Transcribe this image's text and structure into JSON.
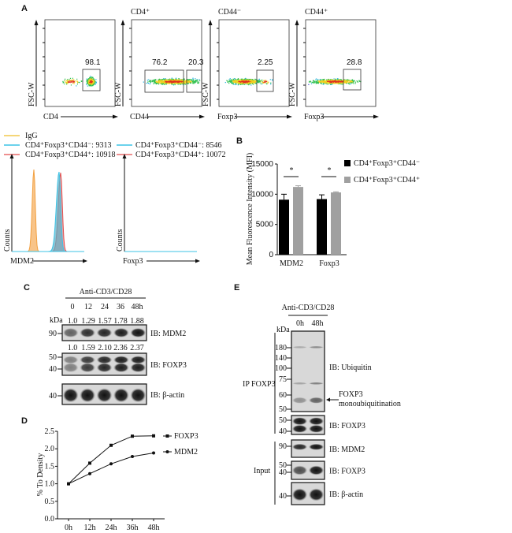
{
  "panel_labels": {
    "a": "A",
    "b": "B",
    "c": "C",
    "d": "D",
    "e": "E"
  },
  "panel_a": {
    "plots": [
      {
        "title": "",
        "xlabel": "CD4",
        "ylabel": "FSC-W",
        "gates": [
          "98.1"
        ]
      },
      {
        "title": "CD4⁺",
        "xlabel": "CD44",
        "ylabel": "FSC-W",
        "gates": [
          "76.2",
          "20.3"
        ]
      },
      {
        "title": "CD44⁻",
        "xlabel": "Foxp3",
        "ylabel": "FSC-W",
        "gates": [
          "2.25"
        ]
      },
      {
        "title": "CD44⁺",
        "xlabel": "Foxp3",
        "ylabel": "FSC-W",
        "gates": [
          "28.8"
        ]
      }
    ],
    "histograms": {
      "legend_left": [
        {
          "label": "IgG",
          "color": "#f2c94c"
        },
        {
          "label": "CD4⁺Foxp3⁺CD44⁻:  9313",
          "color": "#3cc3e6"
        },
        {
          "label": "CD4⁺Foxp3⁺CD44⁺: 10918",
          "color": "#e86a6a"
        }
      ],
      "legend_right": [
        {
          "label": "CD4⁺Foxp3⁺CD44⁻:  8546",
          "color": "#3cc3e6"
        },
        {
          "label": "CD4⁺Foxp3⁺CD44⁺: 10072",
          "color": "#e86a6a"
        }
      ],
      "left": {
        "xlabel": "MDM2",
        "ylabel": "Counts"
      },
      "right": {
        "xlabel": "Foxp3",
        "ylabel": "Counts"
      }
    }
  },
  "chart_data": [
    {
      "panel": "B",
      "type": "bar",
      "categories": [
        "MDM2",
        "Foxp3"
      ],
      "ylabel": "Mean Fluorescence Intensity (MFI)",
      "ylim": [
        0,
        15000
      ],
      "yticks": [
        "0",
        "5000",
        "10000",
        "15000"
      ],
      "series": [
        {
          "name": "CD4⁺Foxp3⁺CD44⁻",
          "color": "#000000",
          "values": [
            9100,
            9200
          ],
          "errors": [
            900,
            700
          ]
        },
        {
          "name": "CD4⁺Foxp3⁺CD44⁺",
          "color": "#a0a0a0",
          "values": [
            11200,
            10300
          ],
          "errors": [
            200,
            100
          ]
        }
      ],
      "significance": [
        "*",
        "*"
      ],
      "legend_position": "right"
    },
    {
      "panel": "D",
      "type": "line",
      "x": [
        "0h",
        "12h",
        "24h",
        "36h",
        "48h"
      ],
      "ylabel": "% To Density",
      "ylim": [
        0,
        2.5
      ],
      "yticks": [
        "0.0",
        "0.5",
        "1.0",
        "1.5",
        "2.0",
        "2.5"
      ],
      "series": [
        {
          "name": "FOXP3",
          "marker": "square",
          "values": [
            1.0,
            1.59,
            2.1,
            2.36,
            2.37
          ]
        },
        {
          "name": "MDM2",
          "marker": "circle",
          "values": [
            1.0,
            1.29,
            1.57,
            1.78,
            1.88
          ]
        }
      ],
      "legend_position": "right"
    }
  ],
  "panel_c": {
    "treatment": "Anti-CD3/CD28",
    "lanes": [
      "0",
      "12",
      "24",
      "36",
      "48h"
    ],
    "kda": "kDa",
    "mdm2_ratios": [
      "1.0",
      "1.29",
      "1.57",
      "1.78",
      "1.88"
    ],
    "foxp3_ratios": [
      "1.0",
      "1.59",
      "2.10",
      "2.36",
      "2.37"
    ],
    "blots": [
      {
        "label": "IB: MDM2",
        "markers": [
          "90"
        ]
      },
      {
        "label": "IB: FOXP3",
        "markers": [
          "50",
          "40"
        ]
      },
      {
        "label": "IB: β-actin",
        "markers": [
          "40"
        ]
      }
    ]
  },
  "panel_e": {
    "treatment": "Anti-CD3/CD28",
    "lanes": [
      "0h",
      "48h"
    ],
    "kda": "kDa",
    "ip_label": "IP FOXP3",
    "input_label": "Input",
    "arrow_label_1": "FOXP3",
    "arrow_label_2": "monoubiquitination",
    "blots": [
      {
        "label": "IB: Ubiquitin",
        "markers": [
          "180",
          "140",
          "100",
          "75",
          "60",
          "50"
        ]
      },
      {
        "label": "IB: FOXP3",
        "markers": [
          "50",
          "40"
        ]
      },
      {
        "label": "IB: MDM2",
        "markers": [
          "90"
        ]
      },
      {
        "label": "IB: FOXP3",
        "markers": [
          "50",
          "40"
        ]
      },
      {
        "label": "IB: β-actin",
        "markers": [
          "40"
        ]
      }
    ]
  }
}
